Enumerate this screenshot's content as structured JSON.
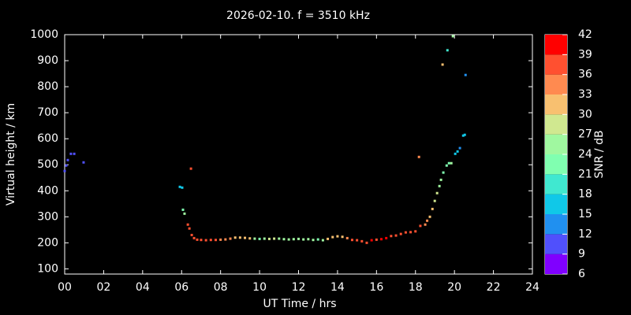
{
  "chart_data": {
    "type": "scatter",
    "title": "2026-02-10. f = 3510 kHz",
    "x_label": "UT Time / hrs",
    "y_label": "Virtual height / km",
    "colorbar_label": "SNR / dB",
    "xlim": [
      0,
      24
    ],
    "ylim": [
      80,
      1000
    ],
    "xticks": [
      {
        "value": 0,
        "label": "00"
      },
      {
        "value": 2,
        "label": "02"
      },
      {
        "value": 4,
        "label": "04"
      },
      {
        "value": 6,
        "label": "06"
      },
      {
        "value": 8,
        "label": "08"
      },
      10,
      12,
      14,
      16,
      18,
      20,
      22,
      24
    ],
    "yticks": [
      100,
      200,
      300,
      400,
      500,
      600,
      700,
      800,
      900,
      1000
    ],
    "clim": [
      6,
      42
    ],
    "cticks": [
      6,
      9,
      12,
      15,
      18,
      21,
      24,
      27,
      30,
      33,
      36,
      39,
      42
    ],
    "colors": [
      "#8000ff",
      "#5050fc",
      "#2090f0",
      "#10c8e8",
      "#40e8d0",
      "#80ffb0",
      "#a0f8a0",
      "#d0e890",
      "#f8c070",
      "#ff8a50",
      "#ff5030",
      "#ff0000"
    ],
    "x": [
      0.0,
      0.08,
      0.16,
      0.32,
      0.49,
      0.97,
      5.91,
      6.03,
      6.48,
      6.07,
      6.15,
      6.32,
      6.4,
      6.52,
      6.64,
      6.8,
      7.0,
      7.25,
      7.5,
      7.75,
      8.0,
      8.25,
      8.5,
      8.75,
      9.0,
      9.25,
      9.5,
      9.75,
      10.0,
      10.25,
      10.5,
      10.75,
      11.0,
      11.25,
      11.5,
      11.75,
      12.0,
      12.25,
      12.5,
      12.75,
      13.0,
      13.25,
      13.5,
      13.75,
      14.0,
      14.25,
      14.5,
      14.75,
      15.0,
      15.25,
      15.5,
      15.75,
      16.0,
      16.25,
      16.5,
      16.75,
      17.0,
      17.25,
      17.5,
      17.75,
      18.0,
      18.25,
      18.5,
      18.6,
      18.74,
      18.87,
      18.99,
      19.11,
      19.23,
      19.31,
      19.43,
      19.6,
      19.72,
      19.84,
      20.04,
      20.16,
      20.28,
      20.45,
      20.53,
      20.57,
      18.18,
      19.39,
      19.64,
      19.92
    ],
    "y": [
      476,
      497,
      518,
      542,
      542,
      509,
      415,
      412,
      485,
      327,
      312,
      270,
      255,
      230,
      218,
      212,
      211,
      210,
      211,
      211,
      212,
      213,
      216,
      220,
      220,
      219,
      217,
      216,
      215,
      216,
      215,
      216,
      216,
      214,
      213,
      214,
      215,
      213,
      214,
      211,
      213,
      210,
      215,
      222,
      225,
      223,
      218,
      211,
      210,
      206,
      200,
      210,
      212,
      214,
      218,
      226,
      228,
      234,
      240,
      241,
      244,
      265,
      270,
      285,
      300,
      330,
      361,
      391,
      418,
      442,
      470,
      497,
      506,
      506,
      542,
      551,
      564,
      612,
      615,
      845,
      530,
      885,
      940,
      994
    ],
    "snr": [
      9,
      9,
      9,
      9,
      9,
      9,
      15,
      15,
      36,
      21,
      24,
      36,
      36,
      36,
      36,
      36,
      36,
      36,
      36,
      36,
      33,
      33,
      33,
      30,
      30,
      30,
      30,
      24,
      21,
      24,
      27,
      27,
      24,
      24,
      24,
      24,
      24,
      24,
      24,
      24,
      21,
      24,
      30,
      30,
      30,
      30,
      33,
      36,
      36,
      36,
      36,
      39,
      36,
      39,
      39,
      36,
      36,
      36,
      36,
      36,
      36,
      36,
      33,
      33,
      30,
      30,
      27,
      27,
      24,
      24,
      21,
      21,
      21,
      24,
      15,
      15,
      12,
      15,
      15,
      12,
      33,
      30,
      18,
      24
    ]
  }
}
